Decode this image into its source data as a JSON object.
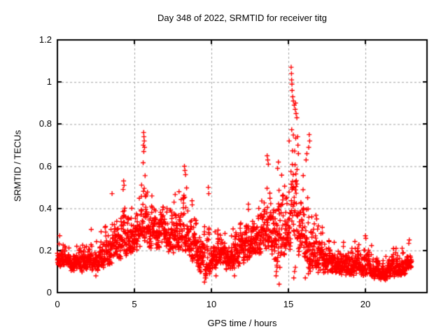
{
  "chart_data": {
    "type": "scatter",
    "title": "Day 348 of 2022, SRMTID for receiver titg",
    "xlabel": "GPS time / hours",
    "ylabel": "SRMTID / TECUs",
    "xlim": [
      0,
      24
    ],
    "ylim": [
      0,
      1.2
    ],
    "xticks": [
      0,
      5,
      10,
      15,
      20
    ],
    "xtick_labels": [
      "0",
      "5",
      "10",
      "15",
      "20"
    ],
    "yticks": [
      0,
      0.2,
      0.4,
      0.6,
      0.8,
      1,
      1.2
    ],
    "ytick_labels": [
      "0",
      "0.2",
      "0.4",
      "0.6",
      "0.8",
      "1",
      "1.2"
    ],
    "grid": true,
    "legend": "none",
    "marker": "plus",
    "marker_color": "#ff0000",
    "grid_color": "#a0a0a0",
    "axis_color": "#000000",
    "background": "#ffffff",
    "data_trange": [
      0,
      23
    ],
    "n_points": 2400,
    "seed": 48,
    "envelope_note": "dense noisy time series sampled ~30s; envelope = [hour, typical low, typical high] bulk band read off the plot; outliers = individually visible extreme points [hour, TECUs]",
    "envelope": [
      [
        0.0,
        0.13,
        0.27
      ],
      [
        0.5,
        0.11,
        0.24
      ],
      [
        1.0,
        0.1,
        0.23
      ],
      [
        1.5,
        0.09,
        0.22
      ],
      [
        2.0,
        0.1,
        0.24
      ],
      [
        2.5,
        0.1,
        0.27
      ],
      [
        3.0,
        0.12,
        0.33
      ],
      [
        3.5,
        0.13,
        0.42
      ],
      [
        4.0,
        0.15,
        0.46
      ],
      [
        4.3,
        0.16,
        0.5
      ],
      [
        4.6,
        0.17,
        0.5
      ],
      [
        5.0,
        0.18,
        0.45
      ],
      [
        5.3,
        0.19,
        0.5
      ],
      [
        5.6,
        0.21,
        0.68
      ],
      [
        5.8,
        0.21,
        0.6
      ],
      [
        6.0,
        0.2,
        0.52
      ],
      [
        6.3,
        0.2,
        0.5
      ],
      [
        6.7,
        0.2,
        0.46
      ],
      [
        7.0,
        0.2,
        0.46
      ],
      [
        7.5,
        0.18,
        0.46
      ],
      [
        8.0,
        0.19,
        0.5
      ],
      [
        8.3,
        0.2,
        0.56
      ],
      [
        8.6,
        0.16,
        0.46
      ],
      [
        9.0,
        0.13,
        0.4
      ],
      [
        9.4,
        0.05,
        0.32
      ],
      [
        9.8,
        0.08,
        0.45
      ],
      [
        10.1,
        0.1,
        0.3
      ],
      [
        10.5,
        0.11,
        0.31
      ],
      [
        11.0,
        0.11,
        0.33
      ],
      [
        11.5,
        0.1,
        0.35
      ],
      [
        12.0,
        0.13,
        0.34
      ],
      [
        12.5,
        0.15,
        0.41
      ],
      [
        13.0,
        0.16,
        0.46
      ],
      [
        13.4,
        0.18,
        0.55
      ],
      [
        13.7,
        0.2,
        0.62
      ],
      [
        14.0,
        0.15,
        0.55
      ],
      [
        14.4,
        0.06,
        0.6
      ],
      [
        14.7,
        0.13,
        0.56
      ],
      [
        15.0,
        0.15,
        0.7
      ],
      [
        15.25,
        0.15,
        0.98
      ],
      [
        15.5,
        0.18,
        0.9
      ],
      [
        15.75,
        0.15,
        0.72
      ],
      [
        16.0,
        0.12,
        0.66
      ],
      [
        16.3,
        0.1,
        0.66
      ],
      [
        16.6,
        0.08,
        0.52
      ],
      [
        17.0,
        0.08,
        0.32
      ],
      [
        17.5,
        0.08,
        0.3
      ],
      [
        18.0,
        0.08,
        0.27
      ],
      [
        18.5,
        0.07,
        0.24
      ],
      [
        19.0,
        0.07,
        0.23
      ],
      [
        19.5,
        0.07,
        0.26
      ],
      [
        19.9,
        0.08,
        0.27
      ],
      [
        20.2,
        0.08,
        0.26
      ],
      [
        20.7,
        0.06,
        0.21
      ],
      [
        21.0,
        0.06,
        0.19
      ],
      [
        21.5,
        0.06,
        0.2
      ],
      [
        21.8,
        0.07,
        0.23
      ],
      [
        22.2,
        0.07,
        0.22
      ],
      [
        22.5,
        0.08,
        0.24
      ],
      [
        23.0,
        0.09,
        0.24
      ]
    ],
    "outliers": [
      [
        15.18,
        1.07
      ],
      [
        15.2,
        1.04
      ],
      [
        15.21,
        1.01
      ],
      [
        15.23,
        0.99
      ],
      [
        15.24,
        0.96
      ],
      [
        15.28,
        0.93
      ],
      [
        15.32,
        0.91
      ],
      [
        15.38,
        0.89
      ],
      [
        15.44,
        0.87
      ],
      [
        15.46,
        0.9
      ],
      [
        15.5,
        0.85
      ],
      [
        15.55,
        0.83
      ],
      [
        5.6,
        0.76
      ],
      [
        5.62,
        0.74
      ],
      [
        5.64,
        0.72
      ],
      [
        5.58,
        0.7
      ],
      [
        5.66,
        0.69
      ],
      [
        5.61,
        0.67
      ],
      [
        8.25,
        0.6
      ],
      [
        8.28,
        0.58
      ],
      [
        8.32,
        0.56
      ],
      [
        4.3,
        0.53
      ],
      [
        4.33,
        0.51
      ],
      [
        4.27,
        0.49
      ],
      [
        13.62,
        0.65
      ],
      [
        13.66,
        0.63
      ],
      [
        13.7,
        0.61
      ],
      [
        16.35,
        0.75
      ],
      [
        16.38,
        0.72
      ],
      [
        16.32,
        0.69
      ],
      [
        16.2,
        0.66
      ],
      [
        16.15,
        0.63
      ],
      [
        15.05,
        0.72
      ],
      [
        15.6,
        0.74
      ],
      [
        15.62,
        0.7
      ],
      [
        15.65,
        0.66
      ],
      [
        9.8,
        0.5
      ],
      [
        9.83,
        0.47
      ],
      [
        3.55,
        0.47
      ],
      [
        12.4,
        0.42
      ],
      [
        14.35,
        0.62
      ],
      [
        14.3,
        0.59
      ],
      [
        2.2,
        0.3
      ],
      [
        20.0,
        0.27
      ],
      [
        22.85,
        0.25
      ],
      [
        0.15,
        0.27
      ],
      [
        17.2,
        0.31
      ],
      [
        14.2,
        0.08
      ],
      [
        14.22,
        0.1
      ],
      [
        14.25,
        0.13
      ],
      [
        14.4,
        0.04
      ],
      [
        15.35,
        0.07
      ],
      [
        15.4,
        0.1
      ],
      [
        15.45,
        0.12
      ],
      [
        16.1,
        0.07
      ],
      [
        16.3,
        0.09
      ],
      [
        9.55,
        0.05
      ],
      [
        9.6,
        0.07
      ],
      [
        10.3,
        0.08
      ],
      [
        11.5,
        0.08
      ],
      [
        21.3,
        0.06
      ],
      [
        2.5,
        0.08
      ]
    ]
  }
}
